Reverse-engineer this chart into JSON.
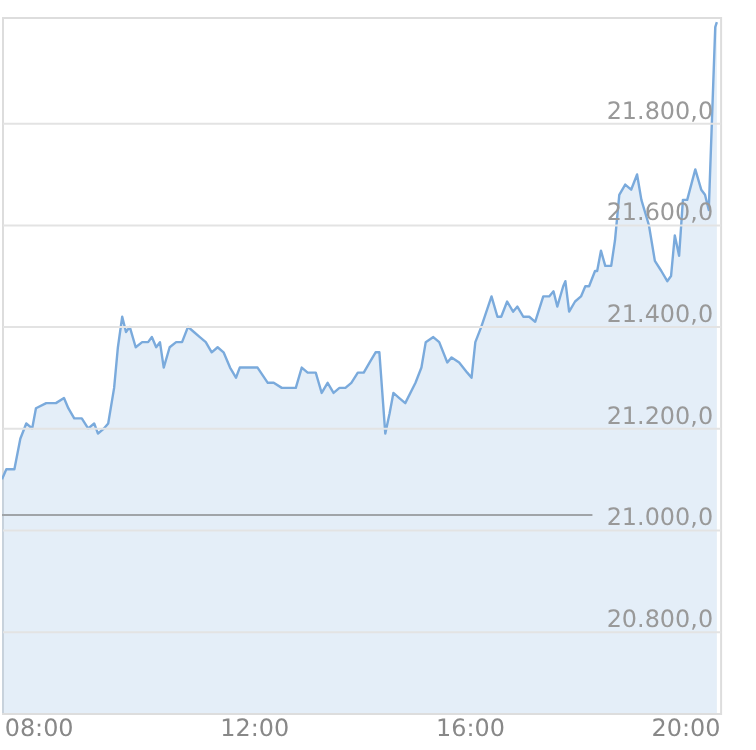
{
  "chart_data": {
    "type": "area",
    "x": [
      7.33,
      7.41,
      7.56,
      7.67,
      7.78,
      7.89,
      7.96,
      8.15,
      8.33,
      8.48,
      8.56,
      8.67,
      8.81,
      8.93,
      9.04,
      9.11,
      9.22,
      9.3,
      9.41,
      9.48,
      9.56,
      9.63,
      9.7,
      9.81,
      9.93,
      10.04,
      10.11,
      10.19,
      10.26,
      10.33,
      10.44,
      10.56,
      10.67,
      10.78,
      10.89,
      11.0,
      11.11,
      11.22,
      11.33,
      11.44,
      11.56,
      11.67,
      11.74,
      11.85,
      11.96,
      12.07,
      12.26,
      12.37,
      12.52,
      12.67,
      12.78,
      12.89,
      13.0,
      13.15,
      13.26,
      13.37,
      13.48,
      13.59,
      13.7,
      13.81,
      13.93,
      14.04,
      14.15,
      14.26,
      14.33,
      14.44,
      14.52,
      14.59,
      14.7,
      14.81,
      15.0,
      15.11,
      15.19,
      15.33,
      15.44,
      15.59,
      15.67,
      15.81,
      15.96,
      16.04,
      16.11,
      16.22,
      16.41,
      16.52,
      16.59,
      16.7,
      16.81,
      16.89,
      17.0,
      17.11,
      17.22,
      17.37,
      17.48,
      17.56,
      17.63,
      17.74,
      17.78,
      17.85,
      17.96,
      18.07,
      18.15,
      18.22,
      18.33,
      18.37,
      18.44,
      18.52,
      18.63,
      18.7,
      18.78,
      18.89,
      19.0,
      19.11,
      19.19,
      19.33,
      19.44,
      19.56,
      19.67,
      19.74,
      19.81,
      19.89,
      19.96,
      20.04,
      20.19,
      20.3,
      20.37,
      20.44,
      20.56,
      20.59
    ],
    "series": [
      {
        "color": "#7aaadc",
        "values": [
          21100,
          21120,
          21120,
          21180,
          21210,
          21200,
          21240,
          21250,
          21250,
          21260,
          21240,
          21220,
          21220,
          21200,
          21210,
          21190,
          21200,
          21210,
          21280,
          21360,
          21420,
          21390,
          21400,
          21360,
          21370,
          21370,
          21380,
          21360,
          21370,
          21320,
          21360,
          21370,
          21370,
          21400,
          21390,
          21380,
          21370,
          21350,
          21360,
          21350,
          21320,
          21300,
          21320,
          21320,
          21320,
          21320,
          21290,
          21290,
          21280,
          21280,
          21280,
          21320,
          21310,
          21310,
          21270,
          21290,
          21270,
          21280,
          21280,
          21290,
          21310,
          21310,
          21330,
          21350,
          21350,
          21190,
          21230,
          21270,
          21260,
          21250,
          21290,
          21320,
          21370,
          21380,
          21370,
          21330,
          21340,
          21330,
          21310,
          21300,
          21370,
          21400,
          21460,
          21420,
          21420,
          21450,
          21430,
          21440,
          21420,
          21420,
          21410,
          21460,
          21460,
          21470,
          21440,
          21480,
          21490,
          21430,
          21450,
          21460,
          21480,
          21480,
          21510,
          21510,
          21550,
          21520,
          21520,
          21570,
          21660,
          21680,
          21670,
          21700,
          21650,
          21600,
          21530,
          21510,
          21490,
          21500,
          21580,
          21540,
          21650,
          21650,
          21710,
          21670,
          21660,
          21630,
          21990,
          22000
        ]
      }
    ],
    "xlim": [
      7.33,
      20.65
    ],
    "xticks": [
      {
        "value": 8,
        "label": "08:00"
      },
      {
        "value": 12,
        "label": "12:00"
      },
      {
        "value": 16,
        "label": "16:00"
      },
      {
        "value": 20,
        "label": "20:00"
      }
    ],
    "ylim": [
      20640,
      22010
    ],
    "yticks": [
      {
        "value": 20800,
        "label": "20.800,0"
      },
      {
        "value": 21000,
        "label": "21.000,0"
      },
      {
        "value": 21200,
        "label": "21.200,0"
      },
      {
        "value": 21400,
        "label": "21.400,0"
      },
      {
        "value": 21600,
        "label": "21.600,0"
      },
      {
        "value": 21800,
        "label": "21.800,0"
      }
    ],
    "ref_lines": [
      {
        "axis": "y",
        "value": 21030,
        "color": "#a0a4a8"
      }
    ],
    "grid": "y"
  }
}
